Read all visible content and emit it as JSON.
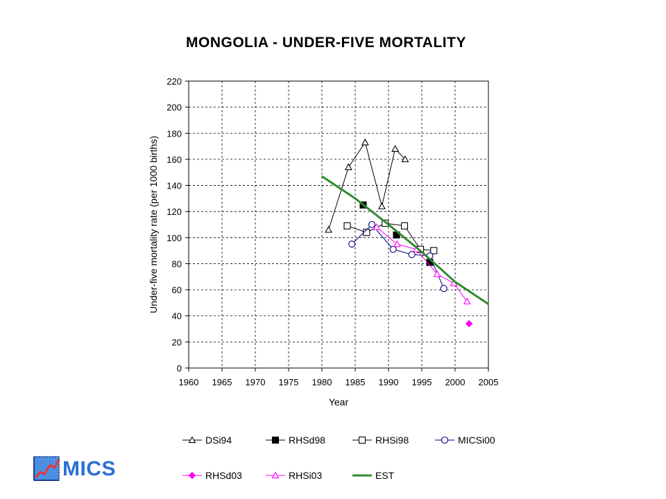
{
  "chart_data": {
    "type": "line",
    "title": "MONGOLIA - UNDER-FIVE MORTALITY",
    "xlabel": "Year",
    "ylabel": "Under-five mortality rate (per 1000 births)",
    "xlim": [
      1960,
      2005
    ],
    "ylim": [
      0,
      220
    ],
    "xticks": [
      "1960",
      "1965",
      "1970",
      "1975",
      "1980",
      "1985",
      "1990",
      "1995",
      "2000",
      "2005"
    ],
    "yticks": [
      "0",
      "20",
      "40",
      "60",
      "80",
      "100",
      "120",
      "140",
      "160",
      "180",
      "200",
      "220"
    ],
    "grid": "vertical and horizontal dashed",
    "legend_position": "bottom",
    "series": [
      {
        "name": "DSi94",
        "marker": "triangle-open",
        "color": "#000000",
        "line": true,
        "points": [
          [
            1981.0,
            106
          ],
          [
            1984.0,
            154
          ],
          [
            1986.5,
            173
          ],
          [
            1989.0,
            124
          ],
          [
            1991.0,
            168
          ],
          [
            1992.5,
            160
          ]
        ]
      },
      {
        "name": "RHSd98",
        "marker": "square-filled",
        "color": "#000000",
        "line": false,
        "points": [
          [
            1986.2,
            125
          ],
          [
            1991.2,
            102
          ],
          [
            1996.2,
            81
          ]
        ]
      },
      {
        "name": "RHSi98",
        "marker": "square-open",
        "color": "#000000",
        "line": true,
        "points": [
          [
            1983.8,
            109
          ],
          [
            1986.7,
            104
          ],
          [
            1989.5,
            111
          ],
          [
            1992.4,
            109
          ],
          [
            1994.8,
            91
          ],
          [
            1996.8,
            90
          ]
        ]
      },
      {
        "name": "MICSi00",
        "marker": "circle-open",
        "color": "#000080",
        "line": true,
        "points": [
          [
            1984.5,
            95
          ],
          [
            1987.5,
            110
          ],
          [
            1990.7,
            91
          ],
          [
            1993.5,
            87
          ],
          [
            1996.2,
            86
          ],
          [
            1998.3,
            61
          ]
        ]
      },
      {
        "name": "RHSd03",
        "marker": "diamond-filled",
        "color": "#ff00ff",
        "line": false,
        "points": [
          [
            2002.1,
            34
          ]
        ]
      },
      {
        "name": "RHSi03",
        "marker": "triangle-open",
        "color": "#ff00ff",
        "line": true,
        "points": [
          [
            1988.2,
            108
          ],
          [
            1991.3,
            95
          ],
          [
            1994.2,
            91
          ],
          [
            1997.3,
            72
          ],
          [
            1999.8,
            65
          ],
          [
            2001.8,
            51
          ]
        ]
      },
      {
        "name": "EST",
        "marker": "none",
        "color": "#2e8b2e",
        "line": true,
        "thick": true,
        "points": [
          [
            1980,
            147
          ],
          [
            1985,
            130
          ],
          [
            1990,
            110
          ],
          [
            1995,
            89
          ],
          [
            2000,
            66
          ],
          [
            2005,
            49
          ]
        ]
      }
    ]
  },
  "logo": {
    "text": "MICS"
  }
}
